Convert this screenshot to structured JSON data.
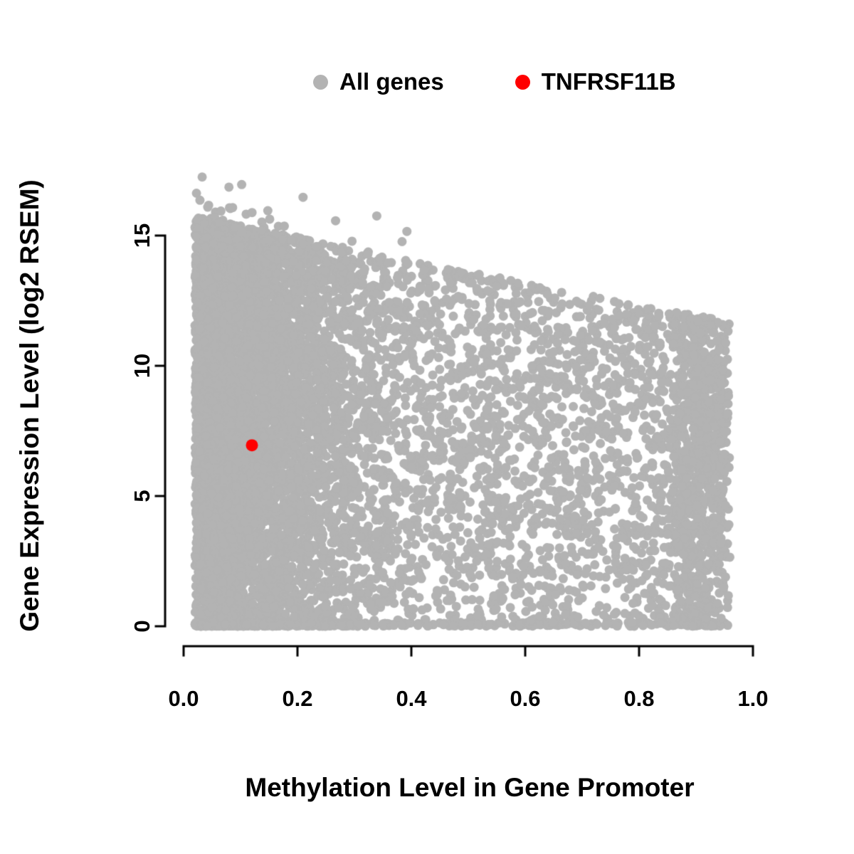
{
  "legend": {
    "items": [
      {
        "label": "All genes",
        "color": "#b3b3b3"
      },
      {
        "label": "TNFRSF11B",
        "color": "#ff0000"
      }
    ]
  },
  "chart_data": {
    "type": "scatter",
    "title": "",
    "xlabel": "Methylation Level in Gene Promoter",
    "ylabel": "Gene Expression Level (log2 RSEM)",
    "xlim": [
      0.0,
      1.0
    ],
    "ylim": [
      0,
      17.5
    ],
    "x_ticks": [
      0.0,
      0.2,
      0.4,
      0.6,
      0.8,
      1.0
    ],
    "x_tick_labels": [
      "0.0",
      "0.2",
      "0.4",
      "0.6",
      "0.8",
      "1.0"
    ],
    "y_ticks": [
      0,
      5,
      10,
      15
    ],
    "y_tick_labels": [
      "0",
      "5",
      "10",
      "15"
    ],
    "grid": false,
    "legend_position": "top",
    "background_color": "#ffffff",
    "axis_color": "#000000",
    "series": [
      {
        "name": "All genes",
        "color": "#b3b3b3",
        "marker": "circle",
        "point_radius": 6.5,
        "generated": true,
        "description": "Dense cloud of ~9000 genes; methylation 0.02-0.96, expression 0 to ~17 log2 RSEM; upper envelope of expression declines from ~15.8 at low methylation to ~11.7 at high methylation (negative correlation); densest at low methylation with a secondary dense column near 0.9 and a dense row at expression 0.",
        "generation": {
          "seed": 20240607,
          "n": 9000,
          "x_min": 0.02,
          "x_max": 0.96,
          "low_x_fraction": 0.55,
          "x_spread": 0.14,
          "right_cluster_fraction": 0.07,
          "right_cluster_min": 0.86,
          "right_cluster_span": 0.09,
          "env_intercept": 15.8,
          "env_slope": -4.3,
          "y_power": 0.9,
          "zero_fraction": 0.07,
          "outlier_fraction": 0.004,
          "outlier_extra": 1.6,
          "outlier_x_max": 0.4
        }
      },
      {
        "name": "TNFRSF11B",
        "color": "#ff0000",
        "marker": "circle",
        "point_radius": 8.5,
        "points": [
          [
            0.12,
            6.95
          ]
        ]
      }
    ]
  }
}
